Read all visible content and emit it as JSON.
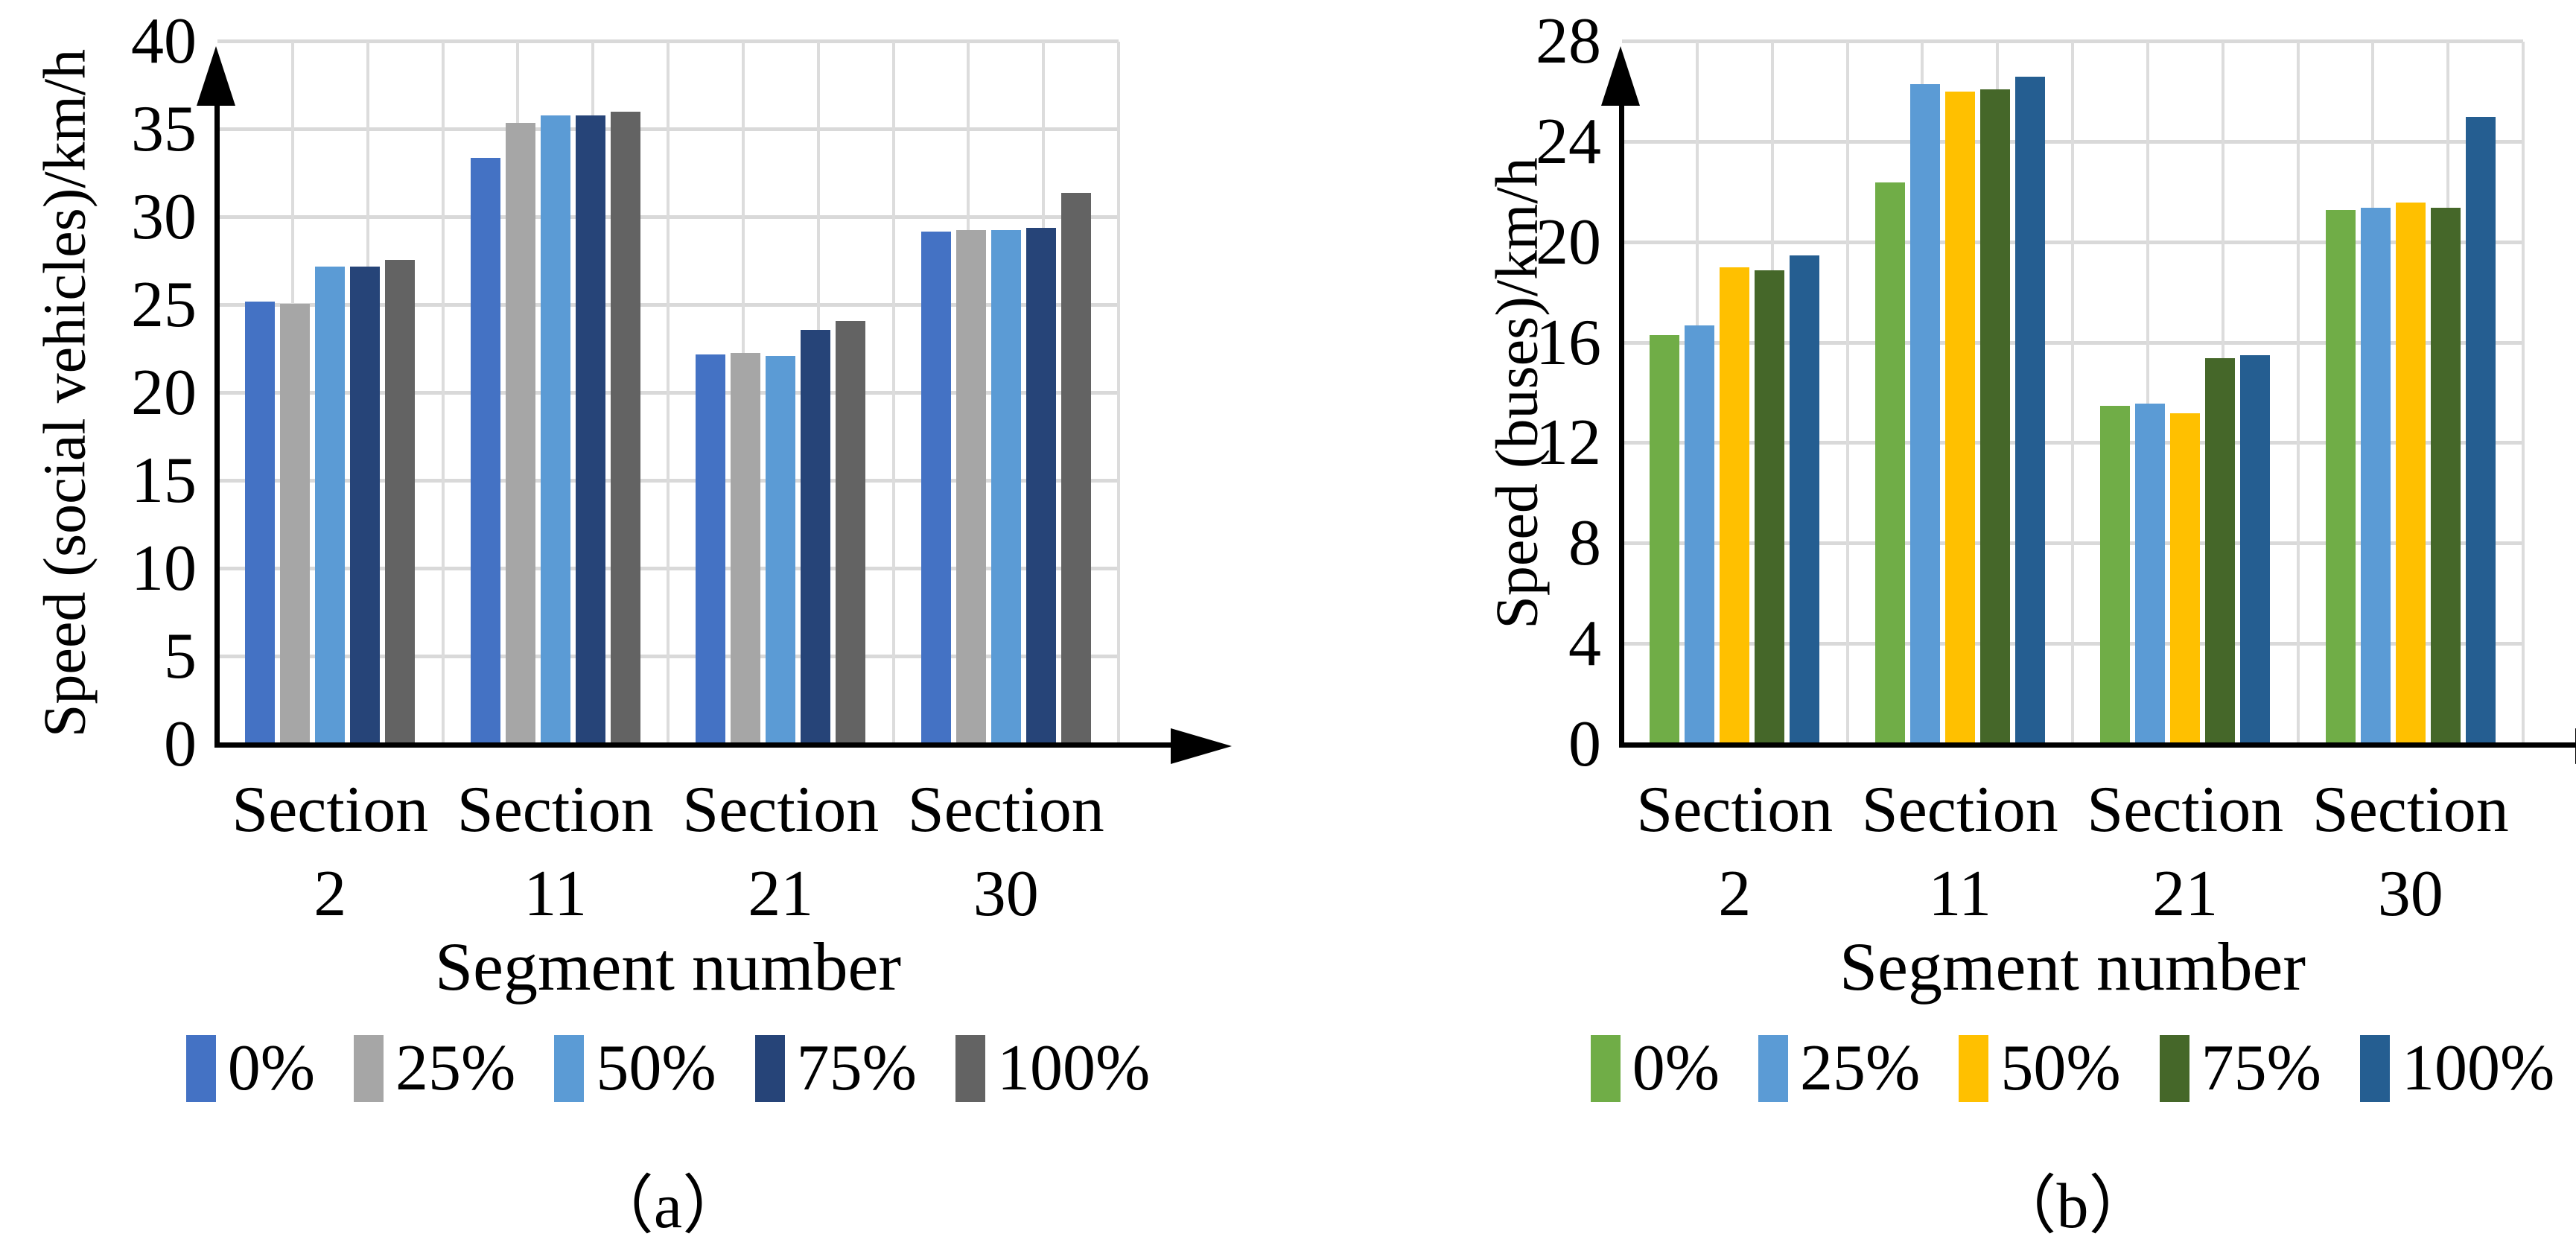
{
  "chart_data": [
    {
      "id": "a",
      "type": "bar",
      "caption": "（a）",
      "ylabel": "Speed (social vehicles)/km/h",
      "xlabel": "Segment number",
      "ymax": 40,
      "ystep": 5,
      "ylim": [
        0,
        40
      ],
      "grid": true,
      "grid_color": "#D9D9D9",
      "legend_position": "bottom",
      "y_tick_labels": [
        "40",
        "35",
        "30",
        "25",
        "20",
        "15",
        "10",
        "5",
        "0"
      ],
      "categories": [
        "Section\n2",
        "Section\n11",
        "Section\n21",
        "Section\n30"
      ],
      "series": [
        {
          "name": "0%",
          "color": "#4472C4",
          "values": [
            25.2,
            33.4,
            22.2,
            29.2
          ]
        },
        {
          "name": "25%",
          "color": "#A6A6A6",
          "values": [
            25.1,
            35.4,
            22.3,
            29.3
          ]
        },
        {
          "name": "50%",
          "color": "#5B9BD5",
          "values": [
            27.2,
            35.8,
            22.1,
            29.3
          ]
        },
        {
          "name": "75%",
          "color": "#264478",
          "values": [
            27.2,
            35.8,
            23.6,
            29.4
          ]
        },
        {
          "name": "100%",
          "color": "#636363",
          "values": [
            27.6,
            36.0,
            24.1,
            31.4
          ]
        }
      ]
    },
    {
      "id": "b",
      "type": "bar",
      "caption": "（b）",
      "ylabel": "Speed (buses)/km/h",
      "xlabel": "Segment number",
      "ymax": 28,
      "ystep": 4,
      "ylim": [
        0,
        28
      ],
      "grid": true,
      "grid_color": "#D9D9D9",
      "legend_position": "bottom",
      "y_tick_labels": [
        "28",
        "24",
        "20",
        "16",
        "12",
        "8",
        "4",
        "0"
      ],
      "categories": [
        "Section\n2",
        "Section\n11",
        "Section\n21",
        "Section\n30"
      ],
      "series": [
        {
          "name": "0%",
          "color": "#70AD47",
          "values": [
            16.3,
            22.4,
            13.5,
            21.3
          ]
        },
        {
          "name": "25%",
          "color": "#5B9BD5",
          "values": [
            16.7,
            26.3,
            13.6,
            21.4
          ]
        },
        {
          "name": "50%",
          "color": "#FFC000",
          "values": [
            19.0,
            26.0,
            13.2,
            21.6
          ]
        },
        {
          "name": "75%",
          "color": "#456729",
          "values": [
            18.9,
            26.1,
            15.4,
            21.4
          ]
        },
        {
          "name": "100%",
          "color": "#255E91",
          "values": [
            19.5,
            26.6,
            15.5,
            25.0
          ]
        }
      ]
    }
  ]
}
